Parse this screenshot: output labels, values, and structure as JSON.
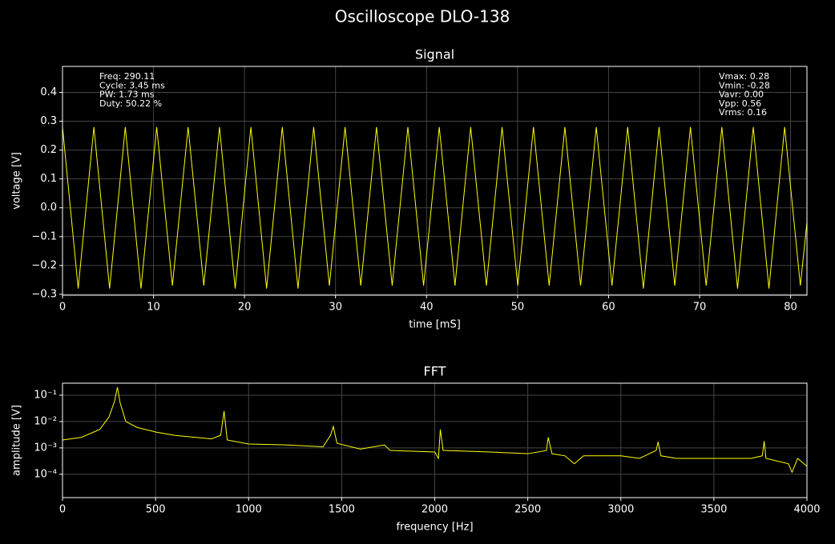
{
  "title": "Oscilloscope DLO-138",
  "chart_data": [
    {
      "type": "line",
      "title": "Signal",
      "xlabel": "time [mS]",
      "ylabel": "voltage [V]",
      "annotations_left": [
        "Freq: 290.11",
        "Cycle: 3.45 ms",
        "PW: 1.73 ms",
        "Duty: 50.22 %"
      ],
      "annotations_right": [
        "Vmax: 0.28",
        "Vmin: -0.28",
        "Vavr: 0.00",
        "Vpp: 0.56",
        "Vrms: 0.16"
      ],
      "xlim": [
        0,
        81.8
      ],
      "xticks": [
        0,
        10,
        20,
        30,
        40,
        50,
        60,
        70,
        80
      ],
      "ylim": [
        -0.303,
        0.49
      ],
      "yticks": [
        {
          "value": -0.3,
          "label": "−0.3"
        },
        {
          "value": -0.2,
          "label": "−0.2"
        },
        {
          "value": -0.1,
          "label": "−0.1"
        },
        {
          "value": 0,
          "label": "0.0"
        },
        0.1,
        0.2,
        0.3,
        0.4
      ],
      "grid": true,
      "log_y": false,
      "series": [
        {
          "color": "#ffff00",
          "x": [
            0,
            1.725,
            3.45,
            5.175,
            6.9,
            8.625,
            10.35,
            12.075,
            13.8,
            15.525,
            17.25,
            18.975,
            20.7,
            22.425,
            24.15,
            25.875,
            27.6,
            29.325,
            31.05,
            32.775,
            34.5,
            36.225,
            37.95,
            39.675,
            41.4,
            43.125,
            44.85,
            46.575,
            48.3,
            50.025,
            51.75,
            53.475,
            55.2,
            56.925,
            58.65,
            60.375,
            62.1,
            63.825,
            65.55,
            67.275,
            69,
            70.725,
            72.45,
            74.175,
            75.9,
            77.625,
            79.35,
            81.075,
            81.8
          ],
          "values": [
            0.28,
            -0.28,
            0.28,
            -0.28,
            0.28,
            -0.28,
            0.28,
            -0.27,
            0.28,
            -0.27,
            0.28,
            -0.28,
            0.28,
            -0.28,
            0.28,
            -0.28,
            0.28,
            -0.27,
            0.28,
            -0.27,
            0.28,
            -0.27,
            0.28,
            -0.27,
            0.28,
            -0.27,
            0.28,
            -0.27,
            0.28,
            -0.27,
            0.28,
            -0.27,
            0.28,
            -0.27,
            0.28,
            -0.27,
            0.28,
            -0.28,
            0.28,
            -0.27,
            0.28,
            -0.27,
            0.28,
            -0.28,
            0.28,
            -0.28,
            0.28,
            -0.27,
            -0.05
          ]
        }
      ]
    },
    {
      "type": "line",
      "title": "FFT",
      "xlabel": "frequency [Hz]",
      "ylabel": "amplitude [V]",
      "xlim": [
        0,
        4000
      ],
      "xticks": [
        0,
        500,
        1000,
        1500,
        2000,
        2500,
        3000,
        3500,
        4000
      ],
      "ylim": [
        1.3e-05,
        0.285
      ],
      "yticks": [
        {
          "value": 0.0001,
          "label": "10⁻⁴"
        },
        {
          "value": 0.001,
          "label": "10⁻³"
        },
        {
          "value": 0.01,
          "label": "10⁻²"
        },
        {
          "value": 0.1,
          "label": "10⁻¹"
        }
      ],
      "grid": true,
      "log_y": true,
      "series": [
        {
          "color": "#ffff00",
          "x": [
            0,
            100,
            200,
            250,
            280,
            295,
            310,
            340,
            400,
            500,
            600,
            800,
            850,
            868,
            885,
            1000,
            1200,
            1400,
            1440,
            1455,
            1475,
            1600,
            1730,
            1760,
            2000,
            2020,
            2030,
            2045,
            2300,
            2500,
            2600,
            2610,
            2630,
            2700,
            2750,
            2800,
            2900,
            3000,
            3100,
            3190,
            3200,
            3215,
            3300,
            3400,
            3500,
            3700,
            3760,
            3770,
            3780,
            3900,
            3920,
            3950,
            4000
          ],
          "values": [
            0.002,
            0.0025,
            0.005,
            0.015,
            0.06,
            0.2,
            0.05,
            0.01,
            0.006,
            0.004,
            0.003,
            0.0022,
            0.003,
            0.025,
            0.002,
            0.0014,
            0.0013,
            0.0011,
            0.003,
            0.0065,
            0.0015,
            0.0009,
            0.0013,
            0.0008,
            0.0007,
            0.0004,
            0.005,
            0.0008,
            0.0007,
            0.0006,
            0.0008,
            0.0025,
            0.0006,
            0.0005,
            0.00025,
            0.0005,
            0.0005,
            0.0005,
            0.0004,
            0.0008,
            0.0017,
            0.0005,
            0.0004,
            0.0004,
            0.0004,
            0.0004,
            0.0005,
            0.0018,
            0.0004,
            0.00025,
            0.00012,
            0.0004,
            0.0002
          ]
        }
      ]
    }
  ]
}
